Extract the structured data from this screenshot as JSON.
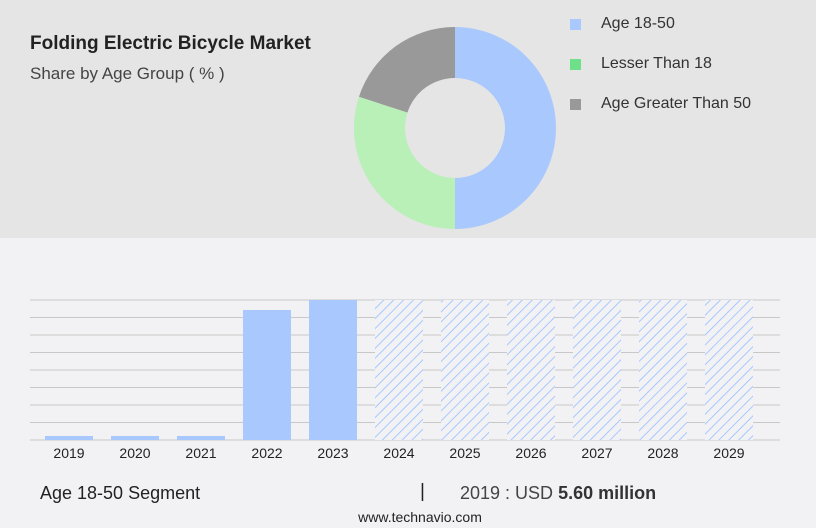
{
  "title": "Folding Electric Bicycle Market",
  "subtitle": "Share by Age Group ( % )",
  "chart_data": [
    {
      "type": "pie",
      "donut": true,
      "title": "Folding Electric Bicycle Market",
      "subtitle": "Share by Age Group ( % )",
      "labels": [
        "Age 18-50",
        "Lesser Than 18",
        "Age Greater Than 50"
      ],
      "values": [
        50,
        30,
        20
      ],
      "colors": [
        "#a8c8fe",
        "#b8f0b8",
        "#999999"
      ],
      "legend_colors": [
        "#a8c8fe",
        "#6ee08a",
        "#999999"
      ],
      "legend": "right"
    },
    {
      "type": "bar",
      "categories": [
        "2019",
        "2020",
        "2021",
        "2022",
        "2023",
        "2024",
        "2025",
        "2026",
        "2027",
        "2028",
        "2029"
      ],
      "values": [
        5.6,
        5.6,
        5.6,
        182,
        196,
        196,
        196,
        196,
        196,
        196,
        196
      ],
      "forecast_from": "2024",
      "color": "#a8c8fe",
      "grid": true,
      "ylim": [
        0,
        196
      ],
      "xlabel": "",
      "ylabel": ""
    }
  ],
  "footer": {
    "segment": "Age 18-50 Segment",
    "separator": "|",
    "year_label": "2019 : USD",
    "value": "5.60 million",
    "site": "www.technavio.com"
  }
}
